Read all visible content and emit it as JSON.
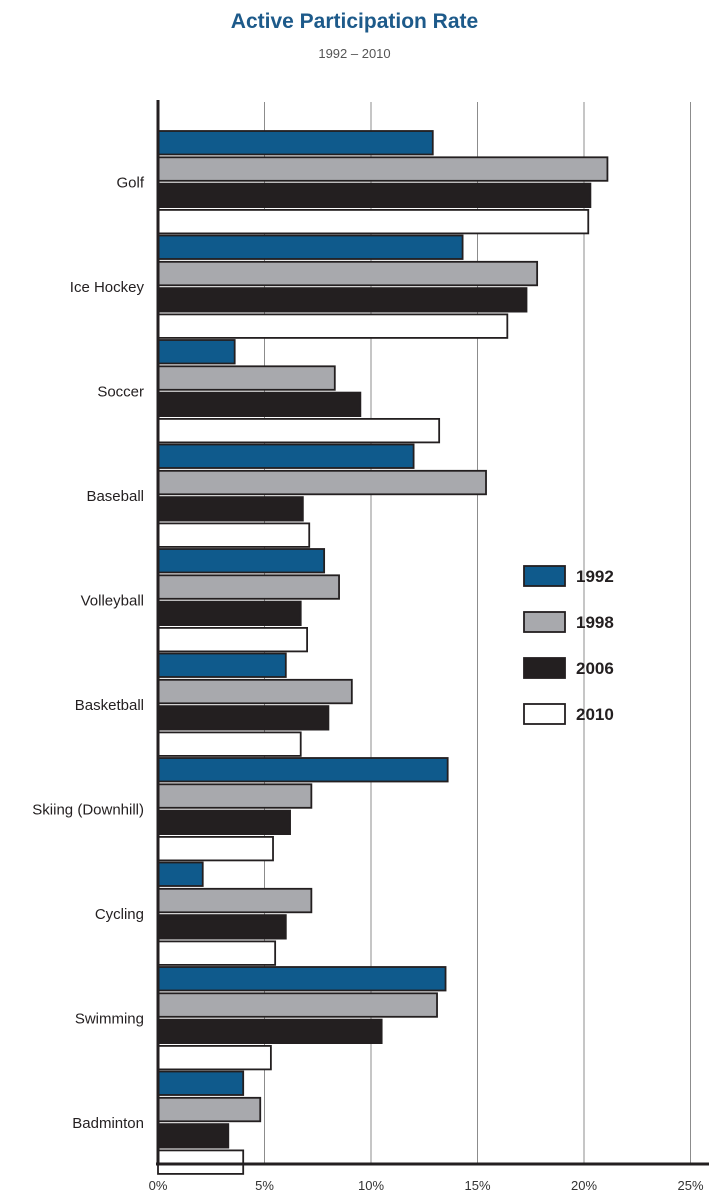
{
  "chart_data": {
    "type": "bar",
    "orientation": "horizontal",
    "title": "Active Participation Rate",
    "subtitle": "1992 – 2010",
    "categories": [
      "Golf",
      "Ice Hockey",
      "Soccer",
      "Baseball",
      "Volleyball",
      "Basketball",
      "Skiing (Downhill)",
      "Cycling",
      "Swimming",
      "Badminton"
    ],
    "series": [
      {
        "name": "1992",
        "color": "#0f5a8c",
        "values": [
          12.9,
          14.3,
          3.6,
          12.0,
          7.8,
          6.0,
          13.6,
          2.1,
          13.5,
          4.0
        ]
      },
      {
        "name": "1998",
        "color": "#a8a9ad",
        "values": [
          21.1,
          17.8,
          8.3,
          15.4,
          8.5,
          9.1,
          7.2,
          7.2,
          13.1,
          4.8
        ]
      },
      {
        "name": "2006",
        "color": "#231f20",
        "values": [
          20.3,
          17.3,
          9.5,
          6.8,
          6.7,
          8.0,
          6.2,
          6.0,
          10.5,
          3.3
        ]
      },
      {
        "name": "2010",
        "color": "#ffffff",
        "values": [
          20.2,
          16.4,
          13.2,
          7.1,
          7.0,
          6.7,
          5.4,
          5.5,
          5.3,
          4.0
        ]
      }
    ],
    "xlim": [
      0,
      25
    ],
    "xticks": [
      "0%",
      "5%",
      "10%",
      "15%",
      "20%",
      "25%"
    ],
    "grid": true,
    "legend_position": "right"
  }
}
